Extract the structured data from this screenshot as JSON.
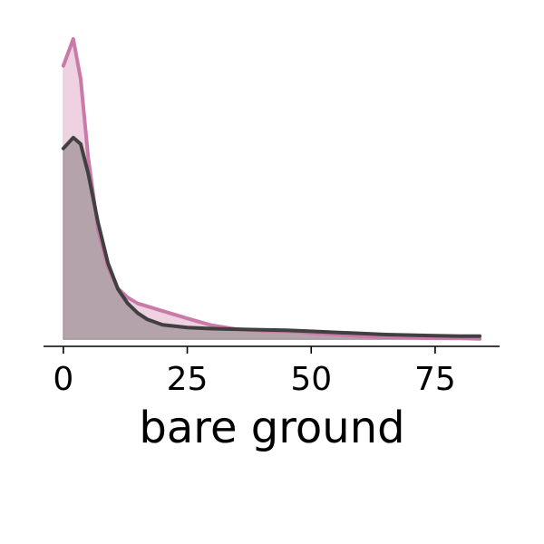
{
  "chart_data": {
    "type": "area",
    "title": "",
    "xlabel": "bare ground",
    "ylabel": "",
    "xlim": [
      -4,
      88
    ],
    "ylim": [
      -0.0013,
      0.0565
    ],
    "x_ticks": [
      "0",
      "25",
      "50",
      "75"
    ],
    "x_tick_values": [
      0,
      25,
      50,
      75
    ],
    "grid": false,
    "legend": "none",
    "series": [
      {
        "color": "#c97aa8",
        "fill_color": "#e9c3d7",
        "x": [
          0,
          2,
          3.5,
          5,
          7,
          9,
          11,
          13,
          15,
          20,
          25,
          30,
          35,
          40,
          45,
          50,
          55,
          60,
          65,
          70,
          75,
          80,
          84
        ],
        "y": [
          0.051,
          0.056,
          0.0485,
          0.034,
          0.0205,
          0.0134,
          0.0095,
          0.0078,
          0.0067,
          0.0053,
          0.0039,
          0.0026,
          0.0019,
          0.0016,
          0.0015,
          0.0012,
          0.0009,
          0.0006,
          0.0004,
          0.0003,
          0.0002,
          0.0002,
          0.0001
        ]
      },
      {
        "color": "#404040",
        "fill_color": "#9d8f95",
        "x": [
          0,
          2,
          3.5,
          5,
          7,
          9,
          11,
          13,
          15,
          17,
          20,
          25,
          30,
          35,
          40,
          45,
          50,
          55,
          60,
          65,
          70,
          75,
          80,
          84
        ],
        "y": [
          0.0356,
          0.0376,
          0.0364,
          0.031,
          0.0218,
          0.0142,
          0.0094,
          0.0067,
          0.0049,
          0.0037,
          0.0027,
          0.0022,
          0.002,
          0.0019,
          0.0018,
          0.0017,
          0.0015,
          0.0013,
          0.0011,
          0.0009,
          0.0008,
          0.0007,
          0.0006,
          0.0006
        ]
      }
    ]
  }
}
